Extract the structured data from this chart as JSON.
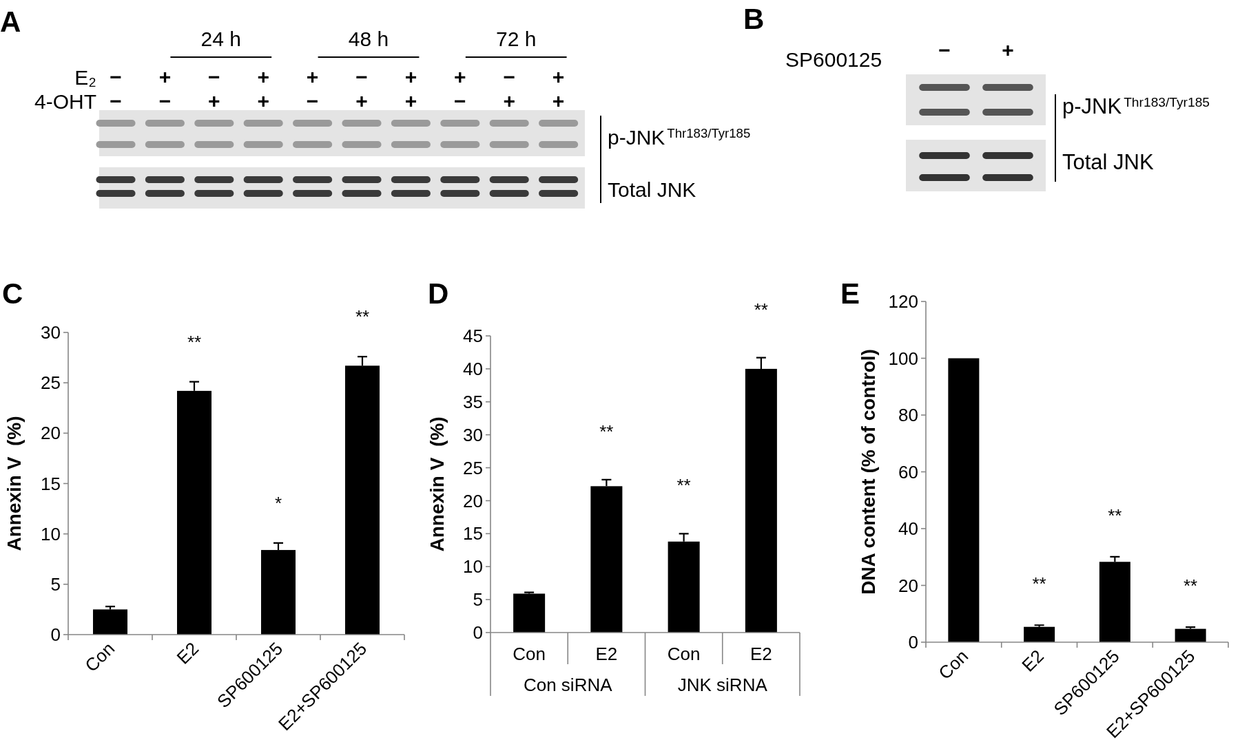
{
  "chart_data": [
    {
      "type": "other",
      "title": "A",
      "annotations": [
        "24 h",
        "48 h",
        "72 h",
        "E₂",
        "4-OHT",
        "−",
        "+",
        "−",
        "+",
        "+",
        "−",
        "+",
        "+",
        "−",
        "+",
        "−",
        "−",
        "+",
        "+",
        "−",
        "+",
        "+",
        "−",
        "+",
        "+",
        "p-JNK$^{Thr183/Tyr185}$",
        "Total JNK"
      ]
    },
    {
      "type": "other",
      "title": "B",
      "annotations": [
        "SP600125",
        "−",
        "+",
        "p-JNK$^{Thr183/Tyr185}$",
        "Total JNK"
      ]
    },
    {
      "type": "bar",
      "title": "C",
      "ylabel": "Annexin V  (%)",
      "categories": [
        "Con",
        "E2",
        "SP600125",
        "E2+SP600125"
      ],
      "values": [
        2.5,
        24.2,
        8.4,
        26.7
      ],
      "errors": [
        [
          2.5,
          2.8
        ],
        [
          24.2,
          25.1
        ],
        [
          8.4,
          9.1
        ],
        [
          26.7,
          27.6
        ]
      ],
      "value_labels": [
        null,
        "**",
        "*",
        "**"
      ],
      "color": "#000000",
      "ylim": [
        0,
        30
      ],
      "yticks": [
        0,
        5,
        10,
        15,
        20,
        25,
        30
      ]
    },
    {
      "type": "bar",
      "title": "D",
      "ylabel": "Annexin V  (%)",
      "categories": [
        "Con",
        "E2",
        "Con",
        "E2"
      ],
      "values": [
        5.9,
        22.2,
        13.8,
        40.0
      ],
      "errors": [
        [
          5.9,
          6.1
        ],
        [
          22.2,
          23.2
        ],
        [
          13.8,
          15.0
        ],
        [
          40.0,
          41.7
        ]
      ],
      "value_labels": [
        null,
        "**",
        "**",
        "**"
      ],
      "color": "#000000",
      "ylim": [
        0,
        45
      ],
      "yticks": [
        0,
        5,
        10,
        15,
        20,
        25,
        30,
        35,
        40,
        45
      ],
      "annotations": [
        "Con siRNA",
        "JNK siRNA"
      ]
    },
    {
      "type": "bar",
      "title": "E",
      "ylabel": "DNA content (% of control)",
      "categories": [
        "Con",
        "E2",
        "SP600125",
        "E2+SP600125"
      ],
      "values": [
        100,
        5.4,
        28.3,
        4.7
      ],
      "errors": [
        null,
        [
          5.4,
          6.0
        ],
        [
          28.3,
          30.1
        ],
        [
          4.7,
          5.3
        ]
      ],
      "value_labels": [
        null,
        "**",
        "**",
        "**"
      ],
      "color": "#000000",
      "ylim": [
        0,
        120
      ],
      "yticks": [
        0,
        20,
        40,
        60,
        80,
        100,
        120
      ]
    }
  ]
}
